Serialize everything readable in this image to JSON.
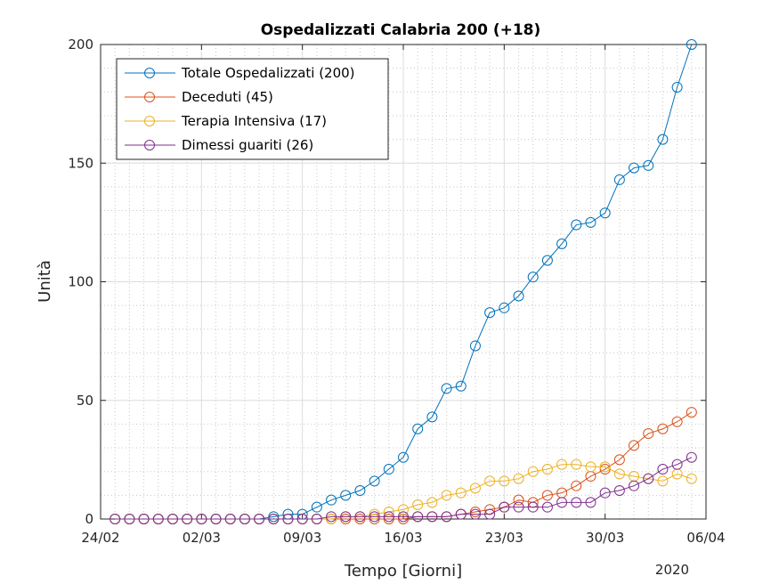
{
  "chart_data": {
    "type": "line",
    "title": "Ospedalizzati Calabria 200 (+18)",
    "xlabel": "Tempo [Giorni]",
    "ylabel": "Unità",
    "year_label": "2020",
    "x_ticks": [
      "24/02",
      "02/03",
      "09/03",
      "16/03",
      "23/03",
      "30/03",
      "06/04"
    ],
    "x_range": [
      "24/02",
      "06/04"
    ],
    "y_ticks": [
      0,
      50,
      100,
      150,
      200
    ],
    "ylim": [
      0,
      200
    ],
    "grid": true,
    "minor_grid": true,
    "legend_position": "top-left",
    "x": [
      "24/02",
      "25/02",
      "26/02",
      "27/02",
      "28/02",
      "29/02",
      "01/03",
      "02/03",
      "03/03",
      "04/03",
      "05/03",
      "06/03",
      "07/03",
      "08/03",
      "09/03",
      "10/03",
      "11/03",
      "12/03",
      "13/03",
      "14/03",
      "15/03",
      "16/03",
      "17/03",
      "18/03",
      "19/03",
      "20/03",
      "21/03",
      "22/03",
      "23/03",
      "24/03",
      "25/03",
      "26/03",
      "27/03",
      "28/03",
      "29/03",
      "30/03",
      "31/03",
      "01/04",
      "02/04",
      "03/04",
      "04/04"
    ],
    "series": [
      {
        "name": "Totale Ospedalizzati (200)",
        "color": "#0072BD",
        "values": [
          0,
          0,
          0,
          0,
          0,
          0,
          0,
          0,
          0,
          0,
          0,
          1,
          2,
          2,
          5,
          8,
          10,
          12,
          16,
          21,
          26,
          38,
          43,
          55,
          56,
          73,
          87,
          89,
          94,
          102,
          109,
          116,
          124,
          125,
          129,
          143,
          148,
          149,
          160,
          182,
          200
        ]
      },
      {
        "name": "Deceduti (45)",
        "color": "#D95319",
        "values": [
          0,
          0,
          0,
          0,
          0,
          0,
          0,
          0,
          0,
          0,
          0,
          0,
          0,
          0,
          0,
          0,
          0,
          0,
          0,
          0,
          0,
          1,
          1,
          1,
          2,
          3,
          4,
          5,
          8,
          7,
          10,
          11,
          14,
          18,
          21,
          25,
          31,
          36,
          38,
          41,
          45
        ]
      },
      {
        "name": "Terapia Intensiva (17)",
        "color": "#EDB120",
        "values": [
          0,
          0,
          0,
          0,
          0,
          0,
          0,
          0,
          0,
          0,
          0,
          0,
          0,
          0,
          0,
          0,
          1,
          1,
          2,
          3,
          4,
          6,
          7,
          10,
          11,
          13,
          16,
          16,
          17,
          20,
          21,
          23,
          23,
          22,
          22,
          19,
          18,
          17,
          16,
          19,
          17
        ]
      },
      {
        "name": "Dimessi guariti (26)",
        "color": "#7E2F8E",
        "values": [
          0,
          0,
          0,
          0,
          0,
          0,
          0,
          0,
          0,
          0,
          0,
          0,
          0,
          0,
          0,
          1,
          1,
          1,
          1,
          1,
          1,
          1,
          1,
          1,
          2,
          2,
          2,
          5,
          5,
          5,
          5,
          7,
          7,
          7,
          11,
          12,
          14,
          17,
          21,
          23,
          26
        ]
      }
    ]
  }
}
